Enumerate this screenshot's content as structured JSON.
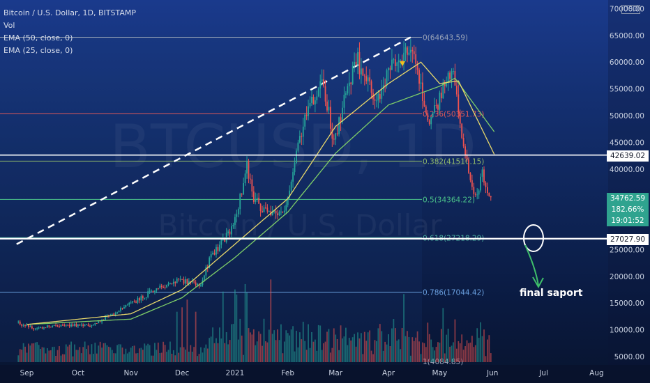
{
  "header": {
    "symbol": "Bitcoin / U.S. Dollar, 1D, BITSTAMP",
    "vol": "Vol",
    "ema50": "EMA (50, close, 0)",
    "ema25": "EMA (25, close, 0)",
    "currency": "USD"
  },
  "watermark": {
    "ticker": "BTCUSD, 1D",
    "name": "Bitcoin / U.S. Dollar"
  },
  "annotation": {
    "text": "final saport"
  },
  "price_tags": {
    "level1": "42639.02",
    "current": "34762.59",
    "percent": "182.66%",
    "timer": "19:01:52",
    "level2": "27027.90"
  },
  "colors": {
    "candle_up": "#26a69a",
    "candle_down": "#ef5350",
    "ema25": "#e8d86a",
    "ema50": "#7fcf68"
  },
  "chart_data": {
    "type": "candlestick",
    "x_axis": {
      "labels": [
        "Sep",
        "Oct",
        "Nov",
        "Dec",
        "2021",
        "Feb",
        "Mar",
        "Apr",
        "May",
        "Jun",
        "Jul",
        "Aug"
      ]
    },
    "y_axis": {
      "labels": [
        "70000.00",
        "65000.00",
        "60000.00",
        "55000.00",
        "50000.00",
        "45000.00",
        "40000.00",
        "35000.00",
        "30000.00",
        "25000.00",
        "20000.00",
        "15000.00",
        "10000.00",
        "5000.00"
      ],
      "range": [
        5000,
        70000
      ]
    },
    "fib_levels": [
      {
        "label": "0(64643.59)",
        "value": 64643.59,
        "color": "#9aa4b8"
      },
      {
        "label": "0.236(50351.73)",
        "value": 50351.73,
        "color": "#e05858"
      },
      {
        "label": "0.382(41510.15)",
        "value": 41510.15,
        "color": "#8fb86a"
      },
      {
        "label": "0.5(34364.22)",
        "value": 34364.22,
        "color": "#4cc48a"
      },
      {
        "label": "0.618(27218.29)",
        "value": 27218.29,
        "color": "#4cb0a0"
      },
      {
        "label": "0.786(17044.42)",
        "value": 17044.42,
        "color": "#6aa0e0"
      },
      {
        "label": "1(4084.85)",
        "value": 4084.85,
        "color": "#9aa4b8"
      }
    ],
    "horizontal_lines": [
      42639.02,
      27027.9
    ],
    "price_anchors": [
      {
        "date": "2020-08-26",
        "close": 11400
      },
      {
        "date": "2020-09-05",
        "close": 10200
      },
      {
        "date": "2020-09-20",
        "close": 10900
      },
      {
        "date": "2020-10-08",
        "close": 10700
      },
      {
        "date": "2020-10-21",
        "close": 12800
      },
      {
        "date": "2020-11-05",
        "close": 15600
      },
      {
        "date": "2020-11-20",
        "close": 18400
      },
      {
        "date": "2020-12-01",
        "close": 19300
      },
      {
        "date": "2020-12-11",
        "close": 18000
      },
      {
        "date": "2020-12-17",
        "close": 23000
      },
      {
        "date": "2020-12-31",
        "close": 29000
      },
      {
        "date": "2021-01-08",
        "close": 40500
      },
      {
        "date": "2021-01-12",
        "close": 34500
      },
      {
        "date": "2021-01-22",
        "close": 31000
      },
      {
        "date": "2021-01-31",
        "close": 33000
      },
      {
        "date": "2021-02-08",
        "close": 46500
      },
      {
        "date": "2021-02-21",
        "close": 57500
      },
      {
        "date": "2021-02-28",
        "close": 45200
      },
      {
        "date": "2021-03-13",
        "close": 61000
      },
      {
        "date": "2021-03-25",
        "close": 52000
      },
      {
        "date": "2021-04-02",
        "close": 59000
      },
      {
        "date": "2021-04-14",
        "close": 63500
      },
      {
        "date": "2021-04-25",
        "close": 49000
      },
      {
        "date": "2021-05-09",
        "close": 58500
      },
      {
        "date": "2021-05-12",
        "close": 50000
      },
      {
        "date": "2021-05-19",
        "close": 37000
      },
      {
        "date": "2021-05-23",
        "close": 34500
      },
      {
        "date": "2021-05-26",
        "close": 39000
      },
      {
        "date": "2021-05-31",
        "close": 34762.59
      }
    ],
    "ema50_anchors": [
      {
        "date": "2020-09-01",
        "value": 11000
      },
      {
        "date": "2020-11-01",
        "value": 12000
      },
      {
        "date": "2020-12-01",
        "value": 16000
      },
      {
        "date": "2021-01-01",
        "value": 23500
      },
      {
        "date": "2021-02-01",
        "value": 32000
      },
      {
        "date": "2021-03-01",
        "value": 43000
      },
      {
        "date": "2021-04-01",
        "value": 52000
      },
      {
        "date": "2021-05-01",
        "value": 55500
      },
      {
        "date": "2021-05-10",
        "value": 57000
      },
      {
        "date": "2021-06-02",
        "value": 47000
      }
    ],
    "ema25_anchors": [
      {
        "date": "2020-09-01",
        "value": 11000
      },
      {
        "date": "2020-11-01",
        "value": 13000
      },
      {
        "date": "2020-12-01",
        "value": 17500
      },
      {
        "date": "2021-01-01",
        "value": 26000
      },
      {
        "date": "2021-02-01",
        "value": 34500
      },
      {
        "date": "2021-03-01",
        "value": 48000
      },
      {
        "date": "2021-04-01",
        "value": 56000
      },
      {
        "date": "2021-04-20",
        "value": 60000
      },
      {
        "date": "2021-05-01",
        "value": 56000
      },
      {
        "date": "2021-05-12",
        "value": 56500
      },
      {
        "date": "2021-06-02",
        "value": 42800
      }
    ],
    "trendline": {
      "start": {
        "date": "2020-08-26",
        "value": 26000
      },
      "end": {
        "date": "2021-04-14",
        "value": 64643.59
      }
    }
  }
}
